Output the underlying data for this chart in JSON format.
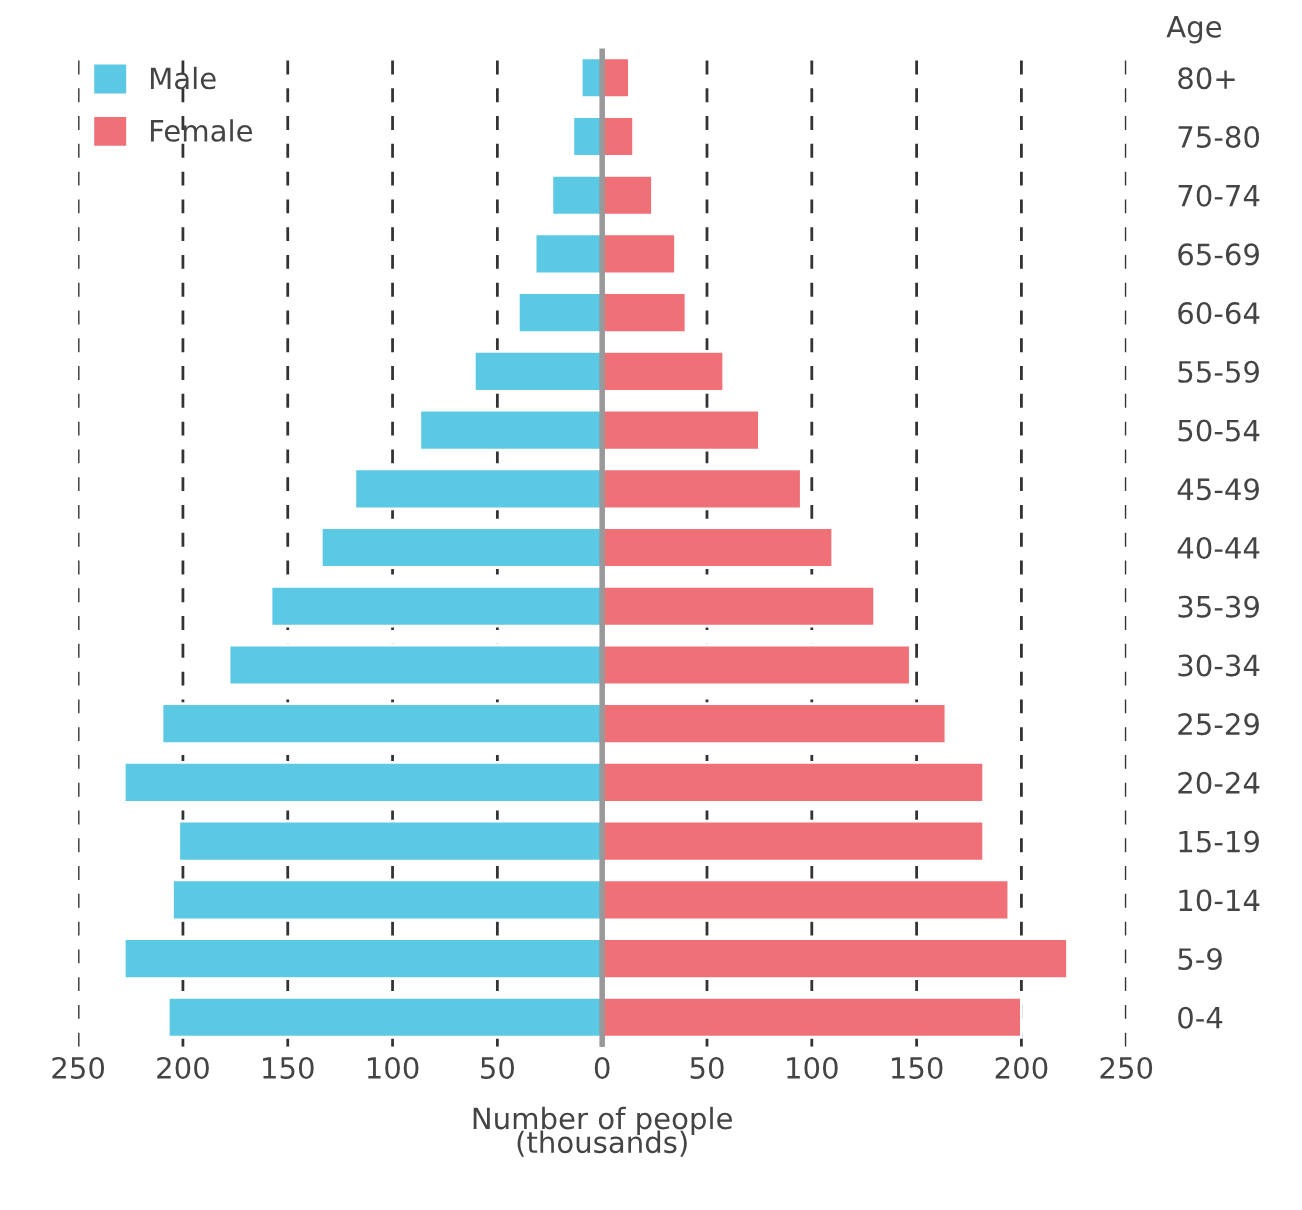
{
  "chart_data": {
    "type": "bar",
    "orientation": "horizontal",
    "stacked": true,
    "categories": [
      "80+",
      "75-80",
      "70-74",
      "65-69",
      "60-64",
      "55-59",
      "50-54",
      "45-49",
      "40-44",
      "35-39",
      "30-34",
      "25-29",
      "20-24",
      "15-19",
      "10-14",
      "5-9",
      "0-4"
    ],
    "series": [
      {
        "name": "Male",
        "color": "#5bc8e4",
        "values": [
          -10,
          -14,
          -24,
          -32,
          -40,
          -61,
          -87,
          -118,
          -134,
          -158,
          -178,
          -210,
          -228,
          -202,
          -205,
          -228,
          -207
        ]
      },
      {
        "name": "Female",
        "color": "#f07077",
        "values": [
          13,
          15,
          24,
          35,
          40,
          58,
          75,
          95,
          110,
          130,
          147,
          164,
          182,
          182,
          194,
          222,
          200
        ]
      }
    ],
    "xlabel": "Number of people\n(thousands)",
    "ylabel": "Age",
    "xlim": [
      -250,
      250
    ],
    "xticks": [
      {
        "value": -250,
        "label": "250"
      },
      {
        "value": -200,
        "label": "200"
      },
      {
        "value": -150,
        "label": "150"
      },
      {
        "value": -100,
        "label": "100"
      },
      {
        "value": -50,
        "label": "50"
      },
      0,
      50,
      100,
      150,
      200,
      250
    ],
    "ref_lines": [
      {
        "axis": "x",
        "value": 0,
        "color": "#999999"
      }
    ],
    "grid": "x",
    "legend": "top left"
  }
}
